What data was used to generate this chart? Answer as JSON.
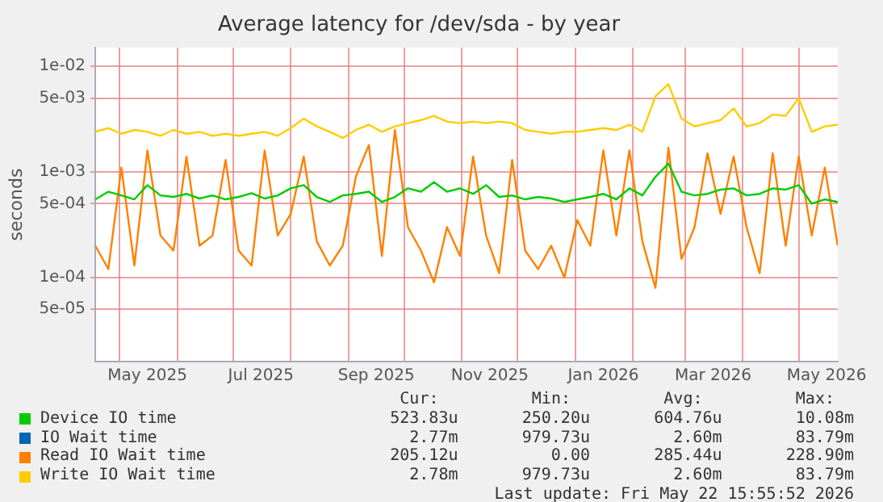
{
  "chart_data": {
    "type": "line",
    "title": "Average latency for /dev/sda - by year",
    "ylabel": "seconds",
    "log": "y",
    "grid": true,
    "legend": "bottom",
    "marker": "none",
    "line_style": "solid",
    "x": [
      "2025-04-18",
      "2025-04-25",
      "2025-05-02",
      "2025-05-09",
      "2025-05-16",
      "2025-05-23",
      "2025-05-30",
      "2025-06-06",
      "2025-06-13",
      "2025-06-20",
      "2025-06-27",
      "2025-07-04",
      "2025-07-11",
      "2025-07-18",
      "2025-07-25",
      "2025-08-01",
      "2025-08-08",
      "2025-08-15",
      "2025-08-22",
      "2025-08-29",
      "2025-09-05",
      "2025-09-12",
      "2025-09-19",
      "2025-09-26",
      "2025-10-03",
      "2025-10-10",
      "2025-10-17",
      "2025-10-24",
      "2025-10-31",
      "2025-11-07",
      "2025-11-14",
      "2025-11-21",
      "2025-11-28",
      "2025-12-05",
      "2025-12-12",
      "2025-12-19",
      "2025-12-26",
      "2026-01-02",
      "2026-01-09",
      "2026-01-16",
      "2026-01-23",
      "2026-01-30",
      "2026-02-06",
      "2026-02-13",
      "2026-02-20",
      "2026-02-27",
      "2026-03-06",
      "2026-03-13",
      "2026-03-20",
      "2026-03-27",
      "2026-04-03",
      "2026-04-10",
      "2026-04-17",
      "2026-04-24",
      "2026-05-01",
      "2026-05-08",
      "2026-05-15",
      "2026-05-22"
    ],
    "xlim": [
      "2025-04-18",
      "2026-05-22"
    ],
    "xticks": [
      {
        "value": "2025-05-01",
        "label": null
      },
      {
        "value": "2025-06-01",
        "label": null
      },
      {
        "value": "2025-07-01",
        "label": null
      },
      {
        "value": "2025-08-01",
        "label": null
      },
      {
        "value": "2025-09-01",
        "label": null
      },
      {
        "value": "2025-10-01",
        "label": null
      },
      {
        "value": "2025-11-01",
        "label": null
      },
      {
        "value": "2025-12-01",
        "label": null
      },
      {
        "value": "2026-01-01",
        "label": null
      },
      {
        "value": "2026-02-01",
        "label": null
      },
      {
        "value": "2026-03-01",
        "label": null
      },
      {
        "value": "2026-04-01",
        "label": null
      },
      {
        "value": "2026-05-01",
        "label": null
      },
      {
        "value": "2025-05-16",
        "label": "May 2025"
      },
      {
        "value": "2025-07-16",
        "label": "Jul 2025"
      },
      {
        "value": "2025-09-16",
        "label": "Sep 2025"
      },
      {
        "value": "2025-11-16",
        "label": "Nov 2025"
      },
      {
        "value": "2026-01-16",
        "label": "Jan 2026"
      },
      {
        "value": "2026-03-16",
        "label": "Mar 2026"
      },
      {
        "value": "2026-05-16",
        "label": "May 2026"
      }
    ],
    "ylim": [
      1.6e-05,
      0.015
    ],
    "yticks": [
      {
        "value": 0.01,
        "label": "1e-02"
      },
      {
        "value": 0.005,
        "label": "5e-03"
      },
      {
        "value": 0.001,
        "label": "1e-03"
      },
      {
        "value": 0.0005,
        "label": "5e-04"
      },
      {
        "value": 0.0001,
        "label": "1e-04"
      },
      {
        "value": 5e-05,
        "label": "5e-05"
      }
    ],
    "series": [
      {
        "name": "Device IO time",
        "color": "#00cc00",
        "values": [
          0.00055,
          0.00065,
          0.0006,
          0.00055,
          0.00075,
          0.0006,
          0.00058,
          0.00062,
          0.00056,
          0.0006,
          0.00055,
          0.00058,
          0.00063,
          0.00056,
          0.0006,
          0.0007,
          0.00075,
          0.00058,
          0.00052,
          0.0006,
          0.00062,
          0.00065,
          0.00052,
          0.00058,
          0.0007,
          0.00065,
          0.0008,
          0.00065,
          0.0007,
          0.00062,
          0.00075,
          0.00058,
          0.0006,
          0.00055,
          0.00058,
          0.00056,
          0.00052,
          0.00055,
          0.00058,
          0.00062,
          0.00055,
          0.0007,
          0.0006,
          0.0009,
          0.0012,
          0.00065,
          0.0006,
          0.00062,
          0.00068,
          0.0007,
          0.0006,
          0.00062,
          0.0007,
          0.00068,
          0.00075,
          0.0005,
          0.00055,
          0.00052
        ]
      },
      {
        "name": "IO Wait time",
        "color": "#0066b3",
        "values": [
          null,
          null,
          null,
          null,
          null,
          null,
          null,
          null,
          null,
          null,
          null,
          null,
          null,
          null,
          null,
          null,
          null,
          null,
          null,
          null,
          null,
          null,
          null,
          null,
          null,
          null,
          null,
          null,
          null,
          null,
          null,
          null,
          null,
          null,
          null,
          null,
          null,
          null,
          null,
          null,
          null,
          null,
          null,
          null,
          null,
          null,
          null,
          null,
          null,
          null,
          null,
          null,
          null,
          null,
          null,
          null,
          null,
          null
        ]
      },
      {
        "name": "Read IO Wait time",
        "color": "#ff8000",
        "values": [
          0.0002,
          0.00012,
          0.0011,
          0.00013,
          0.0016,
          0.00025,
          0.00018,
          0.0014,
          0.0002,
          0.00025,
          0.0013,
          0.00018,
          0.00013,
          0.0016,
          0.00025,
          0.0004,
          0.0014,
          0.00022,
          0.00013,
          0.0002,
          0.0009,
          0.0018,
          0.00016,
          0.0025,
          0.0003,
          0.00018,
          9e-05,
          0.0003,
          0.00016,
          0.0014,
          0.00025,
          0.00011,
          0.0013,
          0.00018,
          0.00012,
          0.0002,
          0.0001,
          0.00035,
          0.0002,
          0.0016,
          0.00025,
          0.0016,
          0.00022,
          8e-05,
          0.0017,
          0.00015,
          0.0003,
          0.0015,
          0.0004,
          0.0014,
          0.0003,
          0.00011,
          0.0015,
          0.0002,
          0.0014,
          0.00025,
          0.0011,
          0.0002
        ]
      },
      {
        "name": "Write IO Wait time",
        "color": "#ffcc00",
        "values": [
          0.0024,
          0.0026,
          0.0023,
          0.0025,
          0.0024,
          0.0022,
          0.0025,
          0.0023,
          0.0024,
          0.0022,
          0.0023,
          0.0022,
          0.0023,
          0.0024,
          0.0022,
          0.0026,
          0.0032,
          0.0027,
          0.0024,
          0.0021,
          0.0025,
          0.0028,
          0.0024,
          0.0027,
          0.0029,
          0.0031,
          0.0034,
          0.003,
          0.0029,
          0.003,
          0.0029,
          0.003,
          0.0029,
          0.0025,
          0.0024,
          0.0023,
          0.0024,
          0.0024,
          0.0025,
          0.0026,
          0.0025,
          0.0028,
          0.0024,
          0.0052,
          0.0068,
          0.0032,
          0.0027,
          0.0029,
          0.0031,
          0.004,
          0.0027,
          0.0029,
          0.0035,
          0.0034,
          0.005,
          0.0024,
          0.0027,
          0.0028
        ]
      }
    ],
    "annotations": [
      "Cur:",
      "Min:",
      "Avg:",
      "Max:",
      "523.83u",
      "250.20u",
      "604.76u",
      "10.08m",
      "2.77m",
      "979.73u",
      "2.60m",
      "83.79m",
      "205.12u",
      "0.00",
      "285.44u",
      "228.90m",
      "2.78m",
      "979.73u",
      "2.60m",
      "83.79m",
      "Last update: Fri May 22 15:55:52 2026"
    ]
  }
}
